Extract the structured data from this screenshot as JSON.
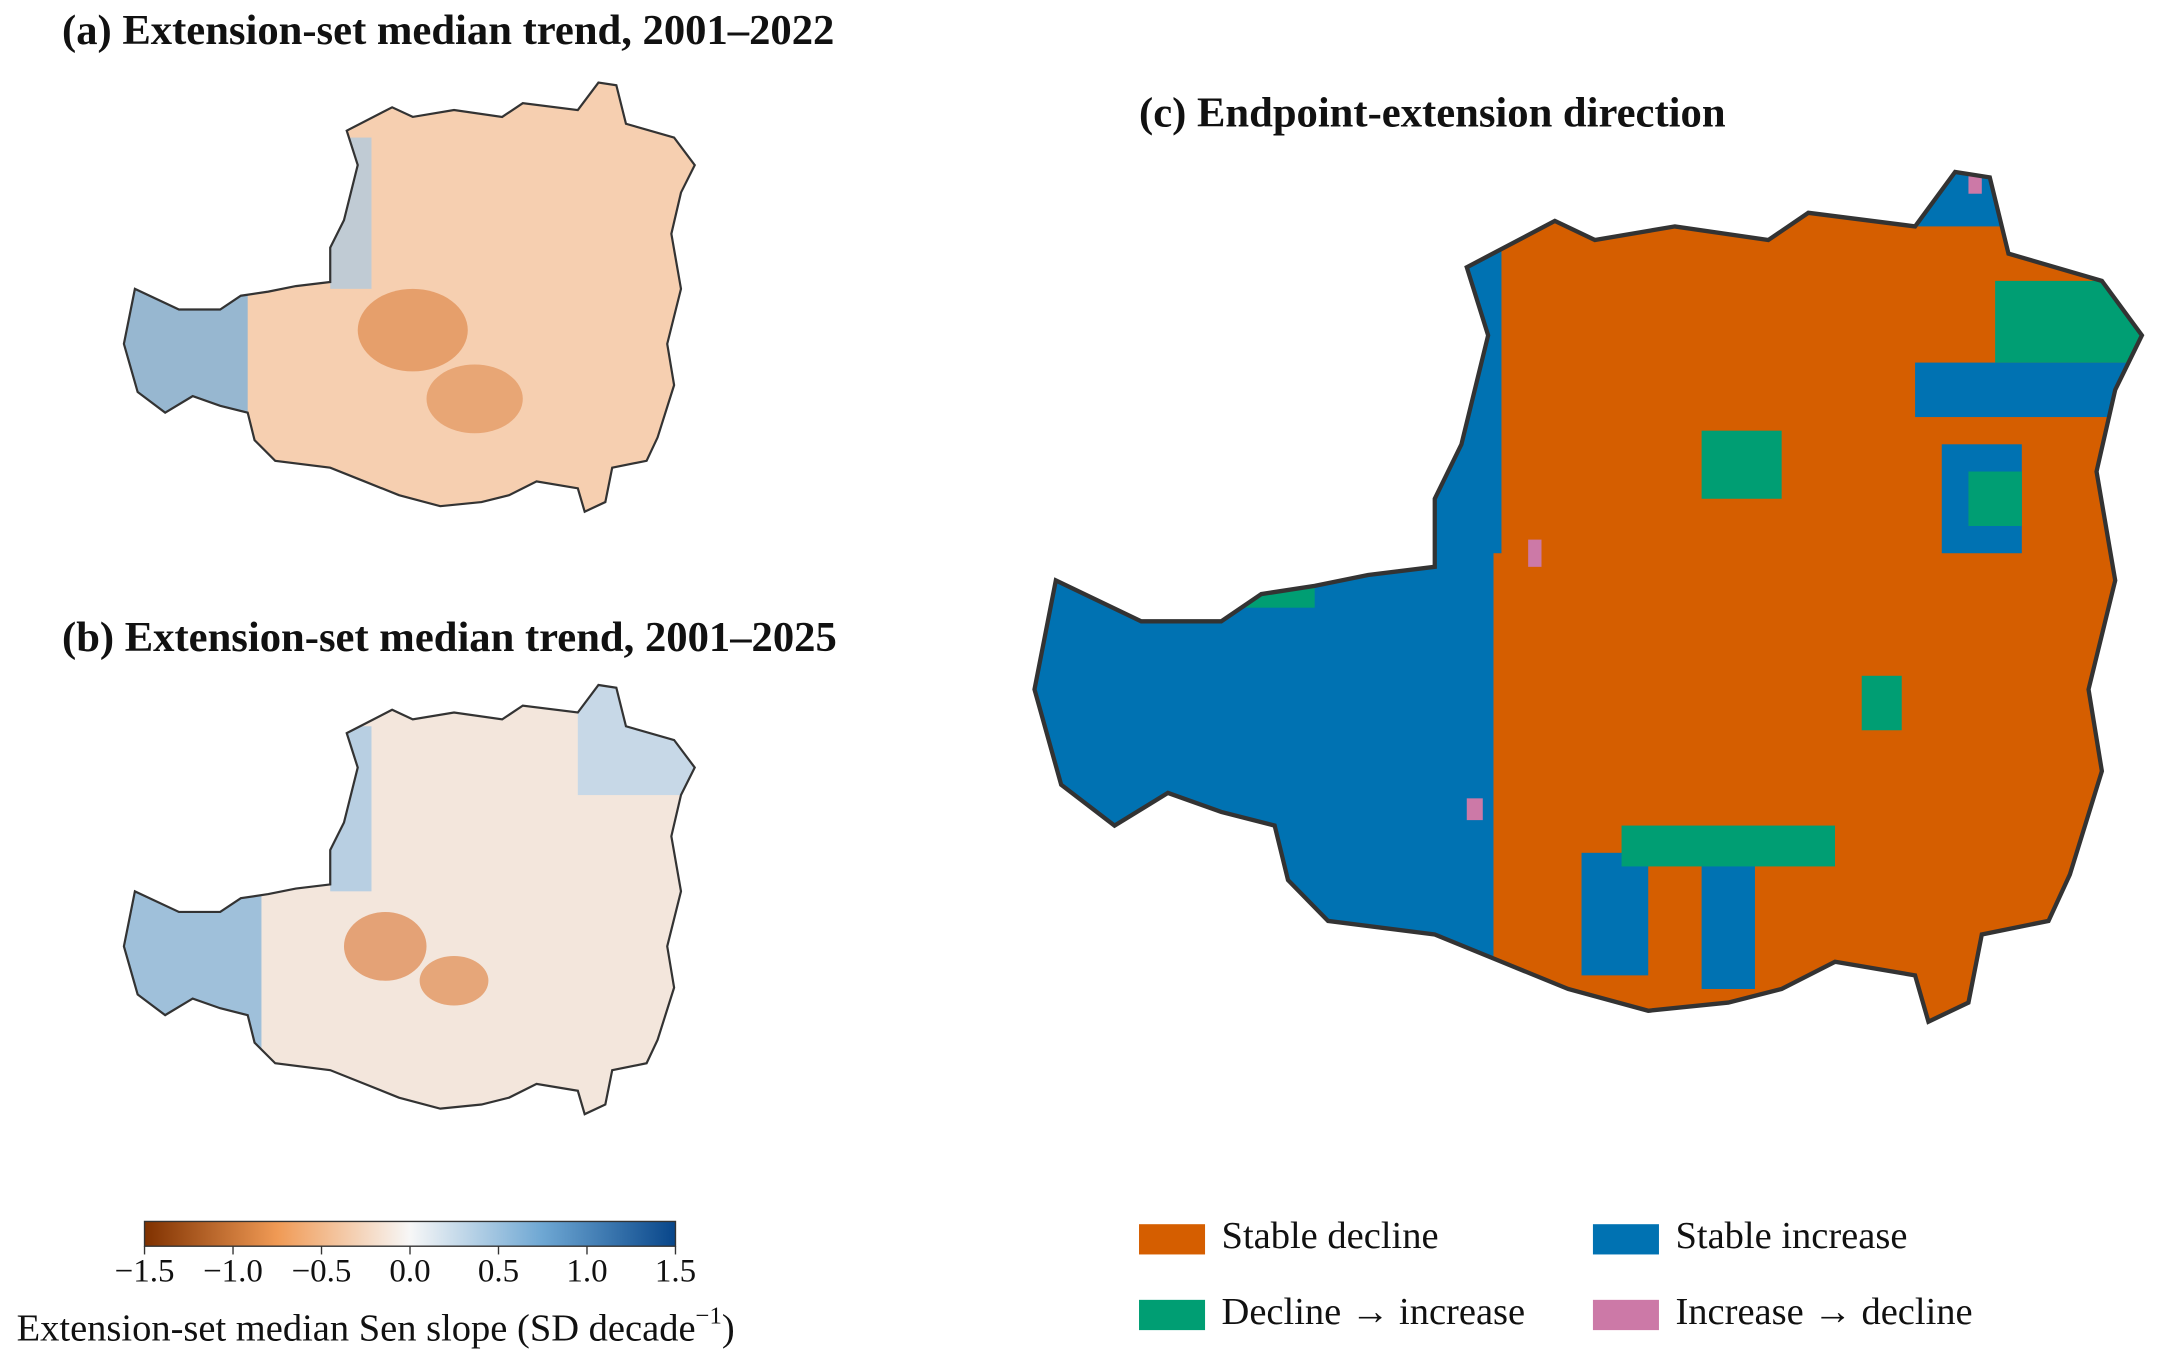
{
  "panels": [
    {
      "title": "(a) Extension-set median trend, 2001–2022"
    },
    {
      "title": "(b) Extension-set median trend, 2001–2025"
    },
    {
      "title": "(c) Endpoint-extension direction"
    }
  ],
  "colorbar": {
    "clim": [
      -1.5,
      1.5
    ],
    "ticks": [
      {
        "value": -1.5,
        "label": "−1.5"
      },
      {
        "value": -1.0,
        "label": "−1.0"
      },
      {
        "value": -0.5,
        "label": "−0.5"
      },
      {
        "value": 0,
        "label": "0.0"
      },
      0.5,
      {
        "value": 1.0,
        "label": "1.0"
      },
      1.5
    ],
    "label": "Extension-set median Sen slope (SD decade",
    "label_superscript": "−1",
    "label_end": ")"
  },
  "legend": [
    {
      "name": "Stable decline",
      "color": "#d55e00"
    },
    {
      "name": "Stable increase",
      "color": "#0072b2"
    },
    {
      "name": "Decline → increase",
      "color": "#009e73"
    },
    {
      "name": "Increase → decline",
      "color": "#cc79a7"
    }
  ]
}
